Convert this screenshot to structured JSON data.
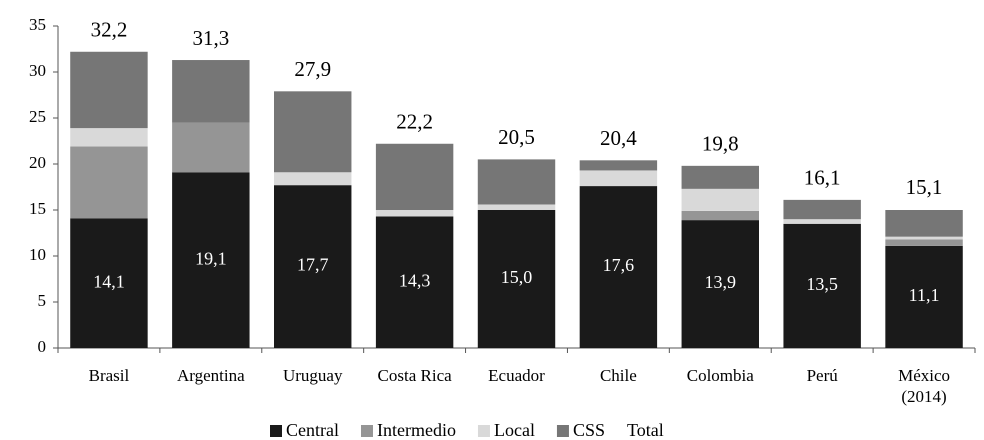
{
  "chart_data": {
    "type": "stacked_bar",
    "categories": [
      "Brasil",
      "Argentina",
      "Uruguay",
      "Costa Rica",
      "Ecuador",
      "Chile",
      "Colombia",
      "Perú",
      "México (2014)"
    ],
    "series": [
      {
        "name": "Central",
        "color": "#1a1a1a",
        "values": [
          14.1,
          19.1,
          17.7,
          14.3,
          15.0,
          17.6,
          13.9,
          13.5,
          11.1
        ],
        "value_labels": [
          "14,1",
          "19,1",
          "17,7",
          "14,3",
          "15,0",
          "17,6",
          "13,9",
          "13,5",
          "11,1"
        ]
      },
      {
        "name": "Intermedio",
        "color": "#959595",
        "values": [
          7.8,
          5.4,
          0,
          0,
          0,
          0,
          1.0,
          0,
          0.7
        ]
      },
      {
        "name": "Local",
        "color": "#d9d9d9",
        "values": [
          2.0,
          0,
          1.4,
          0.7,
          0.6,
          1.7,
          2.4,
          0.5,
          0.3
        ]
      },
      {
        "name": "CSS",
        "color": "#767676",
        "values": [
          8.3,
          6.8,
          8.8,
          7.2,
          4.9,
          1.1,
          2.5,
          2.1,
          2.9
        ]
      },
      {
        "name": "Total",
        "values": [
          32.2,
          31.3,
          27.9,
          22.2,
          20.5,
          20.4,
          19.8,
          16.1,
          15.1
        ],
        "value_labels": [
          "32,2",
          "31,3",
          "27,9",
          "22,2",
          "20,5",
          "20,4",
          "19,8",
          "16,1",
          "15,1"
        ]
      }
    ],
    "ylim": [
      0,
      35
    ],
    "yticks": [
      0,
      5,
      10,
      15,
      20,
      25,
      30,
      35
    ]
  }
}
